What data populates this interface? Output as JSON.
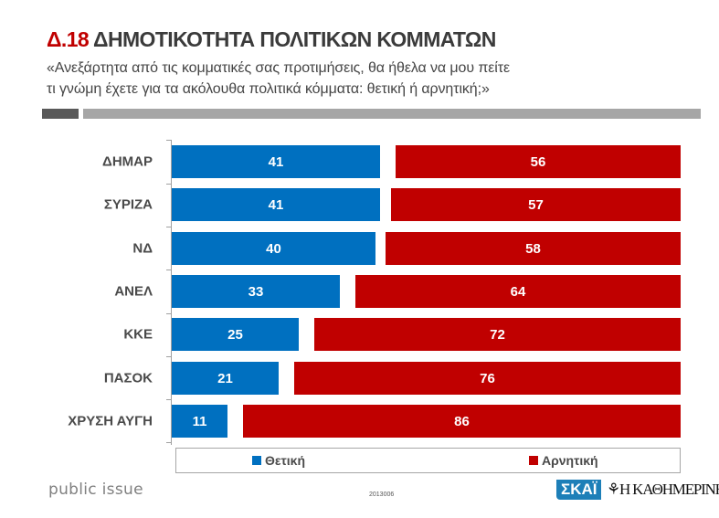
{
  "header": {
    "code": "Δ.18",
    "title": "ΔΗΜΟΤΙΚΟΤΗΤΑ ΠΟΛΙΤΙΚΩΝ ΚΟΜΜΑΤΩΝ",
    "question_line1": "«Ανεξάρτητα από τις κομματικές σας προτιμήσεις, θα ήθελα να μου πείτε",
    "question_line2": "τι γνώμη έχετε για τα ακόλουθα πολιτικά κόμματα: θετική ή αρνητική;»"
  },
  "colors": {
    "positive": "#0070c0",
    "negative": "#c00000",
    "accent": "#c00000"
  },
  "chart_data": {
    "type": "bar",
    "orientation": "horizontal",
    "stacked": true,
    "title": "ΔΗΜΟΤΙΚΟΤΗΤΑ ΠΟΛΙΤΙΚΩΝ ΚΟΜΜΑΤΩΝ",
    "xlabel": "",
    "ylabel": "",
    "categories": [
      "ΔΗΜΑΡ",
      "ΣΥΡΙΖΑ",
      "ΝΔ",
      "ΑΝΕΛ",
      "ΚΚΕ",
      "ΠΑΣΟΚ",
      "ΧΡΥΣΗ ΑΥΓΗ"
    ],
    "series": [
      {
        "name": "Θετική",
        "color": "#0070c0",
        "values": [
          41,
          41,
          40,
          33,
          25,
          21,
          11
        ]
      },
      {
        "name": "Αρνητική",
        "color": "#c00000",
        "values": [
          56,
          57,
          58,
          64,
          72,
          76,
          86
        ]
      }
    ],
    "xlim": [
      0,
      100
    ],
    "grid": false,
    "legend_position": "bottom",
    "data_labels": true
  },
  "footer": {
    "brand": "public issue",
    "survey_code": "2013006",
    "partner1": "ΣΚΑΪ",
    "partner2": "Η ΚΑΘΗΜΕΡΙΝΗ"
  }
}
